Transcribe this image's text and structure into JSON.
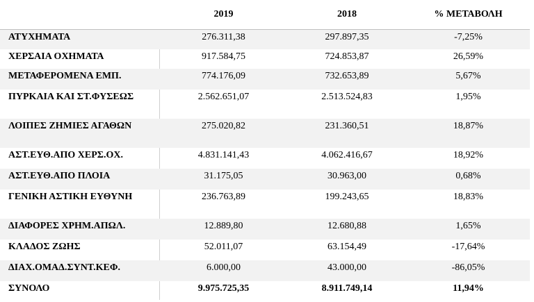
{
  "headers": [
    "",
    "2019",
    "2018",
    "% ΜΕΤΑΒΟΛΗ"
  ],
  "rows": [
    {
      "label": "ΑΤΥΧΗΜΑΤΑ",
      "y2019": "276.311,38",
      "y2018": "297.897,35",
      "change": "-7,25%"
    },
    {
      "label": "ΧΕΡΣΑΙΑ ΟΧΗΜΑΤΑ",
      "y2019": "917.584,75",
      "y2018": "724.853,87",
      "change": "26,59%"
    },
    {
      "label": "ΜΕΤΑΦΕΡΟΜΕΝΑ ΕΜΠ.",
      "y2019": "774.176,09",
      "y2018": "732.653,89",
      "change": "5,67%"
    },
    {
      "label": "ΠΥΡΚΑΙΑ ΚΑΙ ΣΤ.ΦΥΣΕΩΣ",
      "y2019": "2.562.651,07",
      "y2018": "2.513.524,83",
      "change": "1,95%"
    },
    {
      "label": "ΛΟΙΠΕΣ ΖΗΜΙΕΣ ΑΓΑΘΩΝ",
      "y2019": "275.020,82",
      "y2018": "231.360,51",
      "change": "18,87%"
    },
    {
      "label": "ΑΣΤ.ΕΥΘ.ΑΠΟ ΧΕΡΣ.ΟΧ.",
      "y2019": "4.831.141,43",
      "y2018": "4.062.416,67",
      "change": "18,92%"
    },
    {
      "label": "ΑΣΤ.ΕΥΘ.ΑΠΟ ΠΛΟΙΑ",
      "y2019": "31.175,05",
      "y2018": "30.963,00",
      "change": "0,68%"
    },
    {
      "label": "ΓΕΝΙΚΗ ΑΣΤΙΚΗ ΕΥΘΥΝΗ",
      "y2019": "236.763,89",
      "y2018": "199.243,65",
      "change": "18,83%"
    },
    {
      "label": "ΔΙΑΦΟΡΕΣ ΧΡΗΜ.ΑΠΩΛ.",
      "y2019": "12.889,80",
      "y2018": "12.680,88",
      "change": "1,65%"
    },
    {
      "label": "ΚΛΑΔΟΣ ΖΩΗΣ",
      "y2019": "52.011,07",
      "y2018": "63.154,49",
      "change": "-17,64%"
    },
    {
      "label": "ΔΙΑΧ.ΟΜΑΔ.ΣΥΝΤ.ΚΕΦ.",
      "y2019": "6.000,00",
      "y2018": "43.000,00",
      "change": "-86,05%"
    },
    {
      "label": "ΣΥΝΟΛΟ",
      "y2019": "9.975.725,35",
      "y2018": "8.911.749,14",
      "change": "11,94%"
    }
  ]
}
